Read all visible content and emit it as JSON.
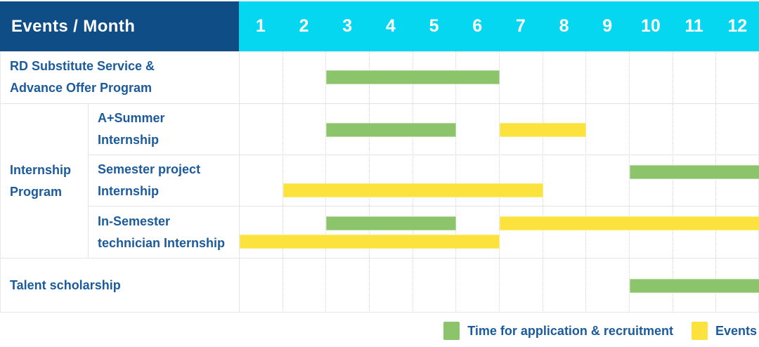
{
  "header": {
    "title": "Events / Month",
    "months": [
      "1",
      "2",
      "3",
      "4",
      "5",
      "6",
      "7",
      "8",
      "9",
      "10",
      "11",
      "12"
    ]
  },
  "colors": {
    "header_bg": "#0E4D85",
    "month_strip_bg": "#06D7F0",
    "application_green": "#8CC46B",
    "event_yellow": "#FCE23C",
    "label_text_blue": "#1C5B9B",
    "header_text": "#FFFFFF"
  },
  "chart_data": {
    "type": "gantt",
    "title": "Events / Month",
    "x_axis": {
      "unit": "month",
      "ticks": [
        "1",
        "2",
        "3",
        "4",
        "5",
        "6",
        "7",
        "8",
        "9",
        "10",
        "11",
        "12"
      ],
      "range": [
        1,
        12
      ],
      "grid": "dotted-vertical"
    },
    "group_label": "Internship Program",
    "group_label_lines": [
      "Internship",
      "Program"
    ],
    "rows": [
      {
        "label": "RD Substitute Service & Advance Offer Program",
        "label_lines": [
          "RD Substitute Service &",
          "Advance Offer Program"
        ],
        "group": null,
        "bars": [
          {
            "series": "application",
            "start_month": 3,
            "end_month": 6,
            "lane": "single"
          }
        ]
      },
      {
        "label": "A+Summer Internship",
        "label_lines": [
          "A+Summer",
          "Internship"
        ],
        "group": "Internship Program",
        "bars": [
          {
            "series": "application",
            "start_month": 3,
            "end_month": 5,
            "lane": "single"
          },
          {
            "series": "event",
            "start_month": 7,
            "end_month": 8,
            "lane": "single"
          }
        ]
      },
      {
        "label": "Semester project Internship",
        "label_lines": [
          "Semester project",
          "Internship"
        ],
        "group": "Internship Program",
        "bars": [
          {
            "series": "application",
            "start_month": 10,
            "end_month": 12,
            "lane": "top"
          },
          {
            "series": "event",
            "start_month": 2,
            "end_month": 7,
            "lane": "bottom"
          }
        ]
      },
      {
        "label": "In-Semester technician Internship",
        "label_lines": [
          "In-Semester",
          "technician Internship"
        ],
        "group": "Internship Program",
        "bars": [
          {
            "series": "application",
            "start_month": 3,
            "end_month": 5,
            "lane": "top"
          },
          {
            "series": "event",
            "start_month": 7,
            "end_month": 12,
            "lane": "top"
          },
          {
            "series": "event",
            "start_month": 1,
            "end_month": 6,
            "lane": "bottom"
          }
        ]
      },
      {
        "label": "Talent scholarship",
        "label_lines": [
          "Talent scholarship"
        ],
        "group": null,
        "bars": [
          {
            "series": "application",
            "start_month": 10,
            "end_month": 12,
            "lane": "single"
          }
        ]
      }
    ],
    "legend": [
      {
        "series": "application",
        "label": "Time for application & recruitment",
        "color": "#8CC46B"
      },
      {
        "series": "event",
        "label": "Events",
        "color": "#FCE23C"
      }
    ],
    "legend_position": "bottom-right"
  }
}
